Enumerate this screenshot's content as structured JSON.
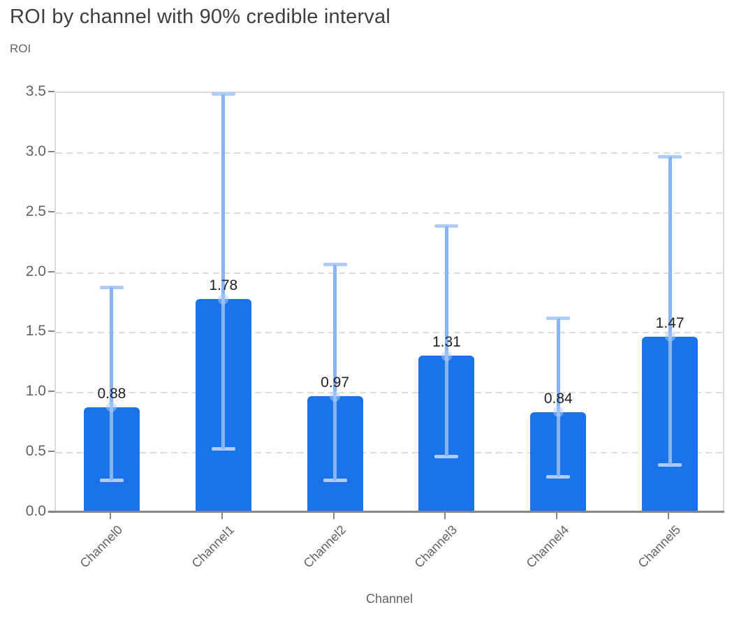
{
  "title": "ROI by channel with 90% credible interval",
  "y_axis_title": "ROI",
  "x_axis_title": "Channel",
  "chart_data": {
    "type": "bar",
    "title": "ROI by channel with 90% credible interval",
    "xlabel": "Channel",
    "ylabel": "ROI",
    "categories": [
      "Channel0",
      "Channel1",
      "Channel2",
      "Channel3",
      "Channel4",
      "Channel5"
    ],
    "series": [
      {
        "name": "ROI",
        "values": [
          0.88,
          1.78,
          0.97,
          1.31,
          0.84,
          1.47
        ]
      }
    ],
    "bar_labels": [
      "0.88",
      "1.78",
      "0.97",
      "1.31",
      "0.84",
      "1.47"
    ],
    "error_bars": {
      "name": "90% credible interval",
      "lower": [
        0.27,
        0.53,
        0.27,
        0.47,
        0.3,
        0.4
      ],
      "upper": [
        1.88,
        3.49,
        2.07,
        2.39,
        1.62,
        2.97
      ]
    },
    "ylim": [
      0,
      3.5
    ],
    "yticks": [
      0,
      0.5,
      1,
      1.5,
      2,
      2.5,
      3,
      3.5
    ],
    "ytick_format_decimals": 1,
    "grid": "horizontal-dashed",
    "legend": "none",
    "colors": {
      "bar": "#1a73e8",
      "error_stem": "#8ab4f8",
      "error_cap": "#aecbfa",
      "marker_dot": "rgba(174,203,250,0.5)",
      "grid": "#dadce0",
      "axis": "#80868b",
      "title": "#3c4043",
      "axis_label": "#5f6368",
      "value_label": "#202124"
    }
  }
}
